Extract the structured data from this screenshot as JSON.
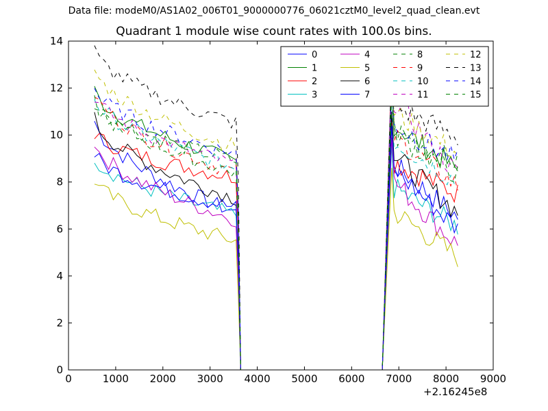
{
  "figure": {
    "suptitle": "Data file: modeM0/AS1A02_006T01_9000000776_06021cztM0_level2_quad_clean.evt",
    "x_offset_label": "+2.16245e8"
  },
  "chart_data": {
    "type": "line",
    "title": "Quadrant 1 module wise count rates with 100.0s bins.",
    "xlabel": "",
    "ylabel": "",
    "xlim": [
      0,
      9000
    ],
    "ylim": [
      0,
      14
    ],
    "x_ticks": [
      0,
      1000,
      2000,
      3000,
      4000,
      5000,
      6000,
      7000,
      8000,
      9000
    ],
    "y_ticks": [
      0,
      2,
      4,
      6,
      8,
      10,
      12,
      14
    ],
    "grid": false,
    "legend_placement": "top-right",
    "legend_columns": 4,
    "segments": [
      {
        "start": 550,
        "gap_start": 3650,
        "gap_end": 6650,
        "resume": 6850,
        "end": 8250
      }
    ],
    "series": [
      {
        "name": "0",
        "color": "#0000ff",
        "style": "solid",
        "level1": 10.6,
        "end1": 6.7,
        "level2": 8.8,
        "end2": 6.5
      },
      {
        "name": "1",
        "color": "#008000",
        "style": "solid",
        "level1": 11.9,
        "end1": 8.9,
        "level2": 10.5,
        "end2": 8.5
      },
      {
        "name": "2",
        "color": "#ff0000",
        "style": "solid",
        "level1": 10.1,
        "end1": 8.2,
        "level2": 8.9,
        "end2": 7.5
      },
      {
        "name": "3",
        "color": "#00bfbf",
        "style": "solid",
        "level1": 9.1,
        "end1": 6.6,
        "level2": 7.8,
        "end2": 6.1
      },
      {
        "name": "4",
        "color": "#bf00bf",
        "style": "solid",
        "level1": 9.7,
        "end1": 6.4,
        "level2": 8.1,
        "end2": 5.3
      },
      {
        "name": "5",
        "color": "#bfbf00",
        "style": "solid",
        "level1": 8.1,
        "end1": 5.5,
        "level2": 6.8,
        "end2": 4.8
      },
      {
        "name": "6",
        "color": "#000000",
        "style": "solid",
        "level1": 10.7,
        "end1": 7.3,
        "level2": 9.2,
        "end2": 6.7
      },
      {
        "name": "7",
        "color": "#0000ff",
        "style": "solid",
        "level1": 9.2,
        "end1": 6.9,
        "level2": 8.6,
        "end2": 6.0
      },
      {
        "name": "8",
        "color": "#008000",
        "style": "dashed",
        "level1": 11.4,
        "end1": 8.9,
        "level2": 10.3,
        "end2": 8.8
      },
      {
        "name": "9",
        "color": "#ff0000",
        "style": "dashed",
        "level1": 11.8,
        "end1": 8.4,
        "level2": 10.0,
        "end2": 7.8
      },
      {
        "name": "10",
        "color": "#00bfbf",
        "style": "dashed",
        "level1": 11.6,
        "end1": 8.6,
        "level2": 9.8,
        "end2": 8.0
      },
      {
        "name": "11",
        "color": "#bf00bf",
        "style": "dashed",
        "level1": 11.7,
        "end1": 8.7,
        "level2": 11.6,
        "end2": 8.3
      },
      {
        "name": "12",
        "color": "#bfbf00",
        "style": "dashed",
        "level1": 12.8,
        "end1": 9.5,
        "level2": 11.0,
        "end2": 9.2
      },
      {
        "name": "13",
        "color": "#000000",
        "style": "dashed",
        "level1": 13.6,
        "end1": 10.5,
        "level2": 11.3,
        "end2": 9.9
      },
      {
        "name": "14",
        "color": "#0000ff",
        "style": "dashed",
        "level1": 12.0,
        "end1": 9.2,
        "level2": 10.5,
        "end2": 8.9
      },
      {
        "name": "15",
        "color": "#008000",
        "style": "dashed",
        "level1": 11.4,
        "end1": 8.4,
        "level2": 10.1,
        "end2": 8.3
      }
    ]
  }
}
